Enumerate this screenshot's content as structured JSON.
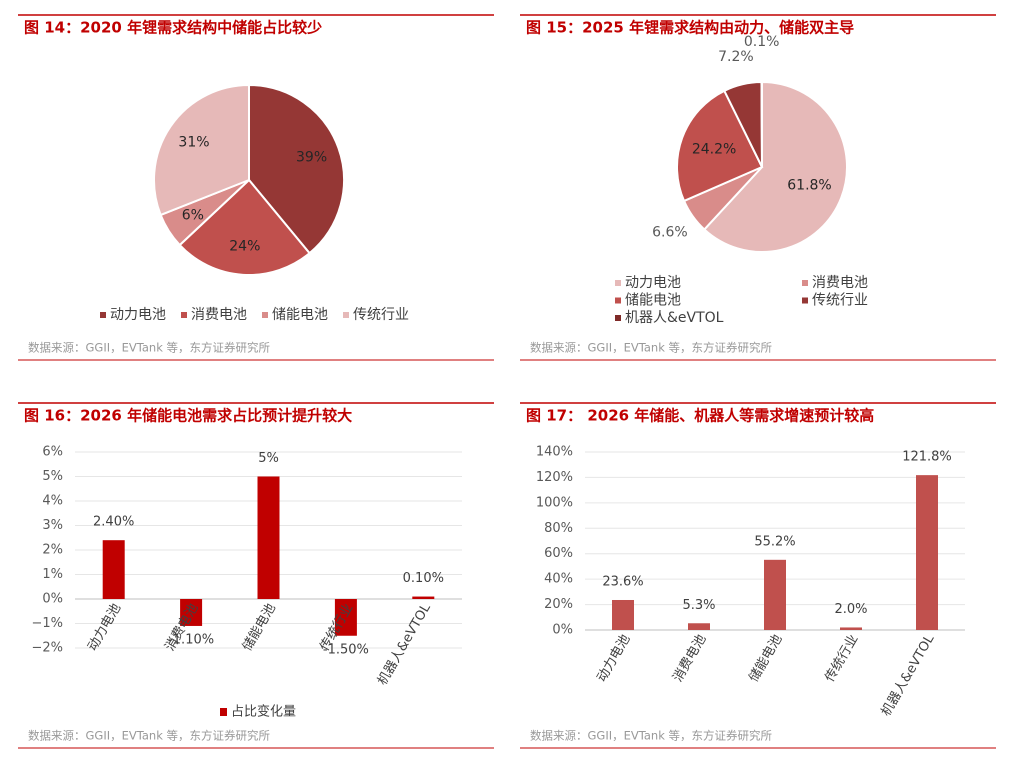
{
  "chart_data": [
    {
      "type": "pie",
      "title": "图 14：2020 年锂需求结构中储能占比较少",
      "categories": [
        "动力电池",
        "消费电池",
        "储能电池",
        "传统行业"
      ],
      "values": [
        39,
        24,
        6,
        31
      ],
      "value_labels": [
        "39%",
        "24%",
        "6%",
        "31%"
      ],
      "colors": [
        "#953735",
        "#c0504d",
        "#d98c8a",
        "#e6b9b8"
      ],
      "source": "数据来源：GGII，EVTank 等，东方证券研究所"
    },
    {
      "type": "pie",
      "title": "图 15：2025 年锂需求结构由动力、储能双主导",
      "categories": [
        "动力电池",
        "消费电池",
        "储能电池",
        "传统行业",
        "机器人&eVTOL"
      ],
      "values": [
        61.8,
        6.6,
        24.2,
        7.2,
        0.1
      ],
      "value_labels": [
        "61.8%",
        "6.6%",
        "24.2%",
        "7.2%",
        "0.1%"
      ],
      "colors": [
        "#e6b9b8",
        "#d98c8a",
        "#c0504d",
        "#953735",
        "#7f2a28"
      ],
      "source": "数据来源：GGII，EVTank 等，东方证券研究所"
    },
    {
      "type": "bar",
      "title": "图 16：2026 年储能电池需求占比预计提升较大",
      "categories": [
        "动力电池",
        "消费电池",
        "储能电池",
        "传统行业",
        "机器人&eVTOL"
      ],
      "series": [
        {
          "name": "占比变化量",
          "color": "#c00000",
          "values": [
            2.4,
            -1.1,
            5,
            -1.5,
            0.1
          ],
          "value_labels": [
            "2.40%",
            "-1.10%",
            "5%",
            "-1.50%",
            "0.10%"
          ]
        }
      ],
      "ylim": [
        -2,
        6
      ],
      "yticks": [
        {
          "value": -2,
          "label": "−2%"
        },
        {
          "value": -1,
          "label": "−1%"
        },
        {
          "value": 0,
          "label": "0%"
        },
        {
          "value": 1,
          "label": "1%"
        },
        {
          "value": 2,
          "label": "2%"
        },
        {
          "value": 3,
          "label": "3%"
        },
        {
          "value": 4,
          "label": "4%"
        },
        {
          "value": 5,
          "label": "5%"
        },
        {
          "value": 6,
          "label": "6%"
        }
      ],
      "grid": true,
      "legend": "bottom",
      "source": "数据来源：GGII，EVTank 等，东方证券研究所"
    },
    {
      "type": "bar",
      "title": "图 17： 2026 年储能、机器人等需求增速预计较高",
      "categories": [
        "动力电池",
        "消费电池",
        "储能电池",
        "传统行业",
        "机器人&eVTOL"
      ],
      "series": [
        {
          "color": "#c0504d",
          "values": [
            23.6,
            5.3,
            55.2,
            2.0,
            121.8
          ],
          "value_labels": [
            "23.6%",
            "5.3%",
            "55.2%",
            "2.0%",
            "121.8%"
          ]
        }
      ],
      "ylim": [
        0,
        140
      ],
      "yticks": [
        {
          "value": 0,
          "label": "0%"
        },
        {
          "value": 20,
          "label": "20%"
        },
        {
          "value": 40,
          "label": "40%"
        },
        {
          "value": 60,
          "label": "60%"
        },
        {
          "value": 80,
          "label": "80%"
        },
        {
          "value": 100,
          "label": "100%"
        },
        {
          "value": 120,
          "label": "120%"
        },
        {
          "value": 140,
          "label": "140%"
        }
      ],
      "grid": true,
      "source": "数据来源：GGII，EVTank 等，东方证券研究所"
    }
  ]
}
